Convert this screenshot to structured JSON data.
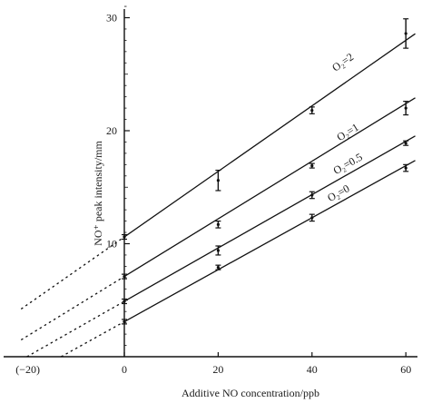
{
  "chart_data": {
    "type": "line",
    "title": "",
    "xlabel": "Additive NO concentration/ppb",
    "ylabel": "NO⁺ peak intensity/mm",
    "xlim": [
      -25,
      62
    ],
    "ylim": [
      0,
      32
    ],
    "x_ticks": [
      0,
      20,
      40,
      60
    ],
    "x_tick_labels": [
      "0",
      "20",
      "40",
      "60"
    ],
    "extra_x_label": {
      "x": -20,
      "text": "(−20)"
    },
    "y_ticks": [
      10,
      20,
      30
    ],
    "y_tick_labels": [
      "10",
      "20",
      "30"
    ],
    "grid": false,
    "legend": "none",
    "series": [
      {
        "name": "O₂=2",
        "x": [
          0,
          20,
          40,
          60
        ],
        "y": [
          10.6,
          15.6,
          21.8,
          28.6
        ],
        "yerr": [
          0.2,
          0.9,
          0.3,
          1.3
        ],
        "fit": {
          "slope": 0.29,
          "intercept": 10.6
        },
        "label_pos": {
          "x": 47,
          "y": 25.8
        }
      },
      {
        "name": "O₂=1",
        "x": [
          0,
          20,
          40,
          60
        ],
        "y": [
          7.1,
          11.7,
          16.9,
          22.0
        ],
        "yerr": [
          0.2,
          0.3,
          0.2,
          0.6
        ],
        "fit": {
          "slope": 0.255,
          "intercept": 7.1
        },
        "label_pos": {
          "x": 48,
          "y": 19.6
        }
      },
      {
        "name": "O₂=0.5",
        "x": [
          0,
          20,
          40,
          60
        ],
        "y": [
          4.9,
          9.4,
          14.3,
          18.9
        ],
        "yerr": [
          0.2,
          0.4,
          0.3,
          0.2
        ],
        "fit": {
          "slope": 0.236,
          "intercept": 4.9
        },
        "label_pos": {
          "x": 48,
          "y": 16.8
        }
      },
      {
        "name": "O₂=0",
        "x": [
          0,
          20,
          40,
          60
        ],
        "y": [
          3.1,
          7.9,
          12.3,
          16.7
        ],
        "yerr": [
          0.2,
          0.2,
          0.3,
          0.3
        ],
        "fit": {
          "slope": 0.23,
          "intercept": 3.1
        },
        "label_pos": {
          "x": 46,
          "y": 14.2
        }
      }
    ]
  }
}
